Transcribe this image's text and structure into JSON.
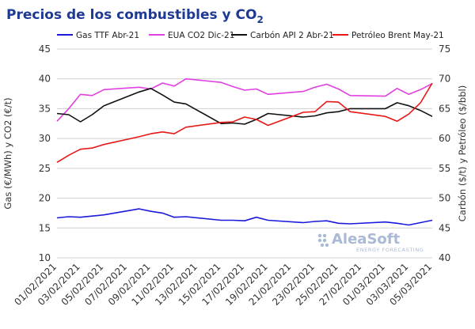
{
  "chart_data": {
    "type": "line",
    "title": "Precios de los combustibles y CO",
    "title_subscript": "2",
    "ylabel_left": "Gas (€/MWh) y CO2 (€/t)",
    "ylabel_right": "Carbón ($/t) y Petróleo ($/bbl)",
    "ylim_left": [
      10,
      45
    ],
    "ylim_right": [
      40,
      75
    ],
    "yticks_left": [
      10,
      15,
      20,
      25,
      30,
      35,
      40,
      45
    ],
    "yticks_right": [
      40,
      45,
      50,
      55,
      60,
      65,
      70,
      75
    ],
    "grid": true,
    "legend_position": "top",
    "x_tick_labels": [
      "01/02/2021",
      "03/02/2021",
      "05/02/2021",
      "07/02/2021",
      "09/02/2021",
      "11/02/2021",
      "13/02/2021",
      "15/02/2021",
      "17/02/2021",
      "19/02/2021",
      "21/02/2021",
      "23/02/2021",
      "25/02/2021",
      "27/02/2021",
      "01/03/2021",
      "03/03/2021",
      "05/03/2021"
    ],
    "x": [
      "2021-02-01",
      "2021-02-02",
      "2021-02-03",
      "2021-02-04",
      "2021-02-05",
      "2021-02-08",
      "2021-02-09",
      "2021-02-10",
      "2021-02-11",
      "2021-02-12",
      "2021-02-15",
      "2021-02-16",
      "2021-02-17",
      "2021-02-18",
      "2021-02-19",
      "2021-02-22",
      "2021-02-23",
      "2021-02-24",
      "2021-02-25",
      "2021-02-26",
      "2021-03-01",
      "2021-03-02",
      "2021-03-03",
      "2021-03-04",
      "2021-03-05"
    ],
    "series": [
      {
        "name": "Gas TTF Abr-21",
        "axis": "left",
        "color": "#1a1adc",
        "values": [
          16.7,
          16.9,
          16.8,
          17.0,
          17.2,
          18.2,
          17.8,
          17.5,
          16.8,
          16.9,
          16.3,
          16.3,
          16.2,
          16.8,
          16.3,
          15.9,
          16.1,
          16.2,
          15.8,
          15.7,
          16.0,
          15.8,
          15.5,
          15.9,
          16.3
        ]
      },
      {
        "name": "EUA CO2 Dic-21",
        "axis": "left",
        "color": "#e040e0",
        "values": [
          32.9,
          35.0,
          37.4,
          37.2,
          38.2,
          38.6,
          38.3,
          39.3,
          38.8,
          40.0,
          39.4,
          38.7,
          38.1,
          38.3,
          37.4,
          37.9,
          38.6,
          39.1,
          38.3,
          37.2,
          37.1,
          38.4,
          37.4,
          38.2,
          39.2
        ]
      },
      {
        "name": "Carbón API 2 Abr-21",
        "axis": "right",
        "color": "#111111",
        "values": [
          64.2,
          64.0,
          62.8,
          64.0,
          65.5,
          67.8,
          68.4,
          67.3,
          66.1,
          65.8,
          62.5,
          62.6,
          62.4,
          63.2,
          64.2,
          63.6,
          63.8,
          64.3,
          64.5,
          65.0,
          65.0,
          66.0,
          65.5,
          64.7,
          63.7
        ]
      },
      {
        "name": "Petróleo Brent May-21",
        "axis": "right",
        "color": "#e81818",
        "values": [
          56.0,
          57.2,
          58.2,
          58.4,
          59.0,
          60.3,
          60.8,
          61.1,
          60.8,
          61.9,
          62.7,
          62.8,
          63.6,
          63.2,
          62.2,
          64.4,
          64.5,
          66.2,
          66.1,
          64.5,
          63.7,
          62.9,
          64.1,
          66.0,
          69.3
        ]
      }
    ]
  },
  "logo": {
    "brand": "AleaSoft",
    "tagline": "ENERGY FORECASTING"
  },
  "colors": {
    "title": "#1f3a93",
    "grid": "#d0d0d0",
    "logo": "#a9b9d6"
  }
}
